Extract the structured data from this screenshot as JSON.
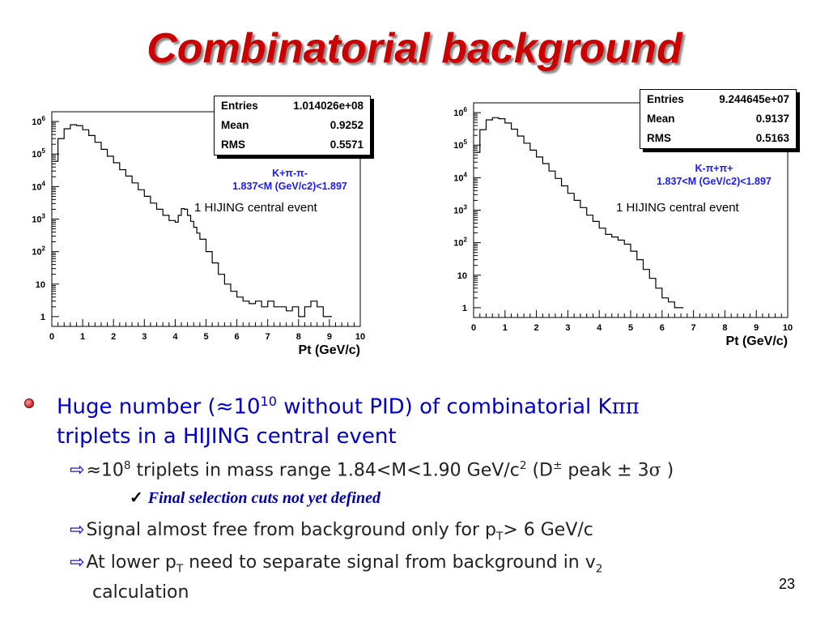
{
  "slide": {
    "title": "Combinatorial background",
    "page_number": "23"
  },
  "chart_data": [
    {
      "type": "line",
      "yscale": "log",
      "xlabel": "Pt (GeV/c)",
      "ylabel": "",
      "xlim": [
        0,
        10
      ],
      "ylim": [
        0.5,
        2000000
      ],
      "x_ticks": [
        "0",
        "1",
        "2",
        "3",
        "4",
        "5",
        "6",
        "7",
        "8",
        "9",
        "10"
      ],
      "y_ticks": [
        "1",
        "10",
        "10^2",
        "10^3",
        "10^4",
        "10^5",
        "10^6"
      ],
      "stats": {
        "entries_label": "Entries",
        "entries": "1.014026e+08",
        "mean_label": "Mean",
        "mean": "0.9252",
        "rms_label": "RMS",
        "rms": "0.5571"
      },
      "channel": "K+π-π-",
      "mass_window": "1.837<M (GeV/c2)<1.897",
      "note": "1 HIJING central event",
      "series": [
        {
          "x": [
            0.05,
            0.2,
            0.4,
            0.6,
            0.8,
            1.0,
            1.2,
            1.4,
            1.6,
            1.8,
            2.0,
            2.2,
            2.4,
            2.6,
            2.8,
            3.0,
            3.2,
            3.4,
            3.6,
            3.8,
            4.0,
            4.1,
            4.2,
            4.3,
            4.4,
            4.5,
            4.6,
            4.7,
            4.8,
            5.0,
            5.2,
            5.4,
            5.6,
            5.8,
            6.0,
            6.2,
            6.4,
            6.6,
            6.8,
            7.0,
            7.2,
            7.4,
            7.6,
            7.8,
            8.0,
            8.2,
            8.4,
            8.6,
            8.8,
            9.0
          ],
          "y": [
            60000,
            300000,
            600000,
            800000,
            750000,
            560000,
            370000,
            230000,
            140000,
            86000,
            54000,
            33000,
            21000,
            13000,
            8000,
            5000,
            3100,
            2000,
            1300,
            900,
            800,
            1300,
            2100,
            2000,
            1300,
            850,
            560,
            370,
            240,
            100,
            45,
            20,
            10,
            6,
            4,
            3,
            2.5,
            3,
            2,
            3,
            2,
            2,
            1.5,
            2,
            1,
            2,
            3,
            2,
            1,
            1
          ]
        }
      ]
    },
    {
      "type": "line",
      "yscale": "log",
      "xlabel": "Pt (GeV/c)",
      "ylabel": "",
      "xlim": [
        0,
        10
      ],
      "ylim": [
        0.5,
        2000000
      ],
      "x_ticks": [
        "0",
        "1",
        "2",
        "3",
        "4",
        "5",
        "6",
        "7",
        "8",
        "9",
        "10"
      ],
      "y_ticks": [
        "1",
        "10",
        "10^2",
        "10^3",
        "10^4",
        "10^5",
        "10^6"
      ],
      "stats": {
        "entries_label": "Entries",
        "entries": "9.244645e+07",
        "mean_label": "Mean",
        "mean": "0.9137",
        "rms_label": "RMS",
        "rms": "0.5163"
      },
      "channel": "K-π+π+",
      "mass_window": "1.837<M (GeV/c2)<1.897",
      "note": "1 HIJING central event",
      "series": [
        {
          "x": [
            0.05,
            0.2,
            0.4,
            0.6,
            0.8,
            1.0,
            1.2,
            1.4,
            1.6,
            1.8,
            2.0,
            2.2,
            2.4,
            2.6,
            2.8,
            3.0,
            3.2,
            3.4,
            3.6,
            3.8,
            4.0,
            4.2,
            4.4,
            4.6,
            4.8,
            5.0,
            5.2,
            5.4,
            5.6,
            5.8,
            6.0,
            6.2,
            6.4,
            6.6
          ],
          "y": [
            60000,
            300000,
            600000,
            700000,
            650000,
            480000,
            310000,
            190000,
            115000,
            70000,
            43000,
            27000,
            16000,
            9500,
            5600,
            3300,
            2000,
            1200,
            700,
            450,
            280,
            180,
            150,
            120,
            90,
            55,
            30,
            15,
            8,
            4,
            2,
            1.5,
            1,
            1
          ]
        }
      ]
    }
  ],
  "bullets": {
    "main": {
      "text_a": "Huge number (≈10",
      "text_a_sup": "10",
      "text_b": " without PID) of combinatorial K",
      "pipi": "ππ",
      "text_c": "triplets in a HIJING central event"
    },
    "sub1": {
      "arrow": "⇨",
      "pre": "≈10",
      "sup": "8",
      "mid": " triplets in mass range 1.84<M<1.90 GeV/c",
      "sup2": "2",
      "post1": " (D",
      "pm": "±",
      "post2": " peak ± 3",
      "sigma": "σ",
      "post3": " )"
    },
    "check": {
      "mark": "✓",
      "text": "Final selection cuts not yet defined"
    },
    "sub2": {
      "arrow": "⇨",
      "pre": "Signal almost free from background only for p",
      "subT": "T",
      "post": "> 6 GeV/c"
    },
    "sub3": {
      "arrow": "⇨",
      "pre": "At lower p",
      "subT": "T",
      "mid": " need to separate signal from background in v",
      "sub2": "2",
      "line2": "calculation"
    }
  }
}
